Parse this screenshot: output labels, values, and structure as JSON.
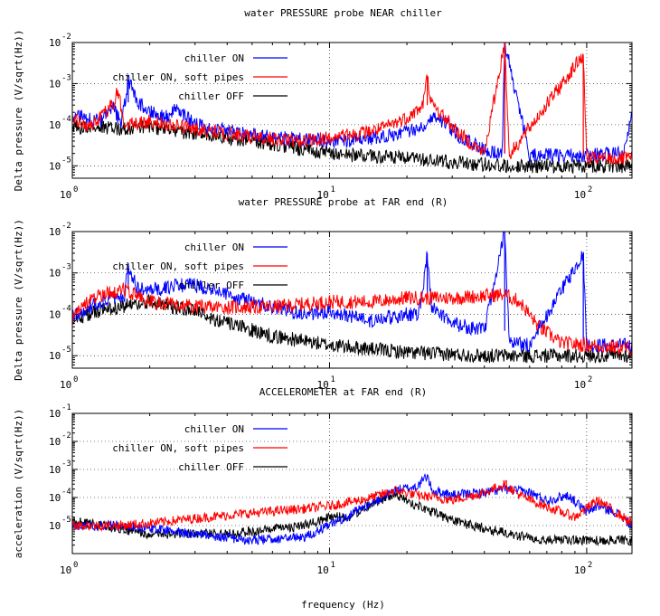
{
  "chart_data": [
    {
      "type": "line",
      "title": "water PRESSURE probe NEAR chiller",
      "xlabel": "",
      "ylabel": "Delta pressure (V/sqrt(Hz))",
      "xscale": "log",
      "yscale": "log",
      "xlim": [
        1,
        150
      ],
      "ylim": [
        5e-06,
        0.01
      ],
      "x_tick_labels": [
        {
          "base": "10",
          "exp": "0"
        },
        {
          "base": "10",
          "exp": "1"
        },
        {
          "base": "10",
          "exp": "2"
        }
      ],
      "y_tick_labels": [
        {
          "base": "10",
          "exp": "-5"
        },
        {
          "base": "10",
          "exp": "-4"
        },
        {
          "base": "10",
          "exp": "-3"
        },
        {
          "base": "10",
          "exp": "-2"
        }
      ],
      "grid": true,
      "legend_position": "top-left",
      "series": [
        {
          "name": "chiller ON",
          "color": "#0000ff",
          "points": [
            [
              1,
              0.00017
            ],
            [
              1.3,
              0.00012
            ],
            [
              1.45,
              0.00025
            ],
            [
              1.55,
              0.0001
            ],
            [
              1.65,
              0.0012
            ],
            [
              1.8,
              0.00035
            ],
            [
              2.0,
              0.00022
            ],
            [
              2.4,
              0.00014
            ],
            [
              2.5,
              0.00028
            ],
            [
              3,
              0.0001
            ],
            [
              4,
              7e-05
            ],
            [
              6,
              5e-05
            ],
            [
              10,
              4e-05
            ],
            [
              14,
              4.5e-05
            ],
            [
              18,
              6e-05
            ],
            [
              22,
              8e-05
            ],
            [
              24,
              0.00012
            ],
            [
              25,
              0.00016
            ],
            [
              28,
              0.00012
            ],
            [
              32,
              5e-05
            ],
            [
              40,
              2.5e-05
            ],
            [
              47,
              2e-05
            ],
            [
              48,
              0.01
            ],
            [
              60,
              1.8e-05
            ],
            [
              100,
              1.8e-05
            ],
            [
              140,
              2e-05
            ],
            [
              148,
              0.00015
            ]
          ]
        },
        {
          "name": "chiller ON, soft pipes",
          "color": "#ff0000",
          "points": [
            [
              1,
              0.00013
            ],
            [
              1.2,
              9e-05
            ],
            [
              1.45,
              0.00035
            ],
            [
              1.5,
              0.0007
            ],
            [
              1.6,
              0.0001
            ],
            [
              2,
              0.00012
            ],
            [
              3,
              8e-05
            ],
            [
              5,
              5e-05
            ],
            [
              8,
              4e-05
            ],
            [
              12,
              5.5e-05
            ],
            [
              16,
              8e-05
            ],
            [
              20,
              0.00015
            ],
            [
              23,
              0.00028
            ],
            [
              24,
              0.0015
            ],
            [
              25,
              0.0003
            ],
            [
              28,
              0.00015
            ],
            [
              32,
              6e-05
            ],
            [
              40,
              2e-05
            ],
            [
              48,
              0.01
            ],
            [
              50,
              1.8e-05
            ],
            [
              97,
              0.005
            ],
            [
              100,
              1.5e-05
            ],
            [
              150,
              1.5e-05
            ]
          ]
        },
        {
          "name": "chiller OFF",
          "color": "#000000",
          "points": [
            [
              1,
              9e-05
            ],
            [
              1.5,
              8e-05
            ],
            [
              2,
              9e-05
            ],
            [
              3,
              6e-05
            ],
            [
              5,
              4e-05
            ],
            [
              8,
              2.5e-05
            ],
            [
              10,
              2e-05
            ],
            [
              20,
              1.5e-05
            ],
            [
              30,
              1.2e-05
            ],
            [
              50,
              1e-05
            ],
            [
              80,
              1e-05
            ],
            [
              150,
              1e-05
            ]
          ]
        }
      ]
    },
    {
      "type": "line",
      "title": "water PRESSURE probe at FAR end (R)",
      "xlabel": "",
      "ylabel": "Delta pressure (V/sqrt(Hz))",
      "xscale": "log",
      "yscale": "log",
      "xlim": [
        1,
        150
      ],
      "ylim": [
        5e-06,
        0.01
      ],
      "x_tick_labels": [
        {
          "base": "10",
          "exp": "0"
        },
        {
          "base": "10",
          "exp": "1"
        },
        {
          "base": "10",
          "exp": "2"
        }
      ],
      "y_tick_labels": [
        {
          "base": "10",
          "exp": "-5"
        },
        {
          "base": "10",
          "exp": "-4"
        },
        {
          "base": "10",
          "exp": "-3"
        },
        {
          "base": "10",
          "exp": "-2"
        }
      ],
      "grid": true,
      "legend_position": "top-left",
      "series": [
        {
          "name": "chiller ON",
          "color": "#0000ff",
          "points": [
            [
              1,
              9e-05
            ],
            [
              1.3,
              0.0002
            ],
            [
              1.6,
              0.0003
            ],
            [
              1.65,
              0.0015
            ],
            [
              1.8,
              0.0004
            ],
            [
              2.2,
              0.0004
            ],
            [
              2.5,
              0.0005
            ],
            [
              3,
              0.0005
            ],
            [
              4,
              0.0003
            ],
            [
              6,
              0.00015
            ],
            [
              8,
              0.0001
            ],
            [
              10,
              0.00012
            ],
            [
              14,
              7e-05
            ],
            [
              20,
              0.0001
            ],
            [
              22,
              0.0001
            ],
            [
              23,
              0.0003
            ],
            [
              24,
              0.003
            ],
            [
              25,
              0.00015
            ],
            [
              30,
              6e-05
            ],
            [
              40,
              4e-05
            ],
            [
              48,
              0.01
            ],
            [
              50,
              2e-05
            ],
            [
              60,
              1.8e-05
            ],
            [
              97,
              0.003
            ],
            [
              100,
              1.8e-05
            ],
            [
              150,
              1.8e-05
            ]
          ]
        },
        {
          "name": "chiller ON, soft pipes",
          "color": "#ff0000",
          "points": [
            [
              1,
              9e-05
            ],
            [
              1.2,
              0.00025
            ],
            [
              1.6,
              0.0004
            ],
            [
              2,
              0.0002
            ],
            [
              3,
              0.00015
            ],
            [
              6,
              0.00015
            ],
            [
              10,
              0.0002
            ],
            [
              15,
              0.0002
            ],
            [
              20,
              0.00025
            ],
            [
              30,
              0.00025
            ],
            [
              40,
              0.00028
            ],
            [
              48,
              0.0003
            ],
            [
              55,
              0.0002
            ],
            [
              65,
              5e-05
            ],
            [
              80,
              2e-05
            ],
            [
              150,
              1.5e-05
            ]
          ]
        },
        {
          "name": "chiller OFF",
          "color": "#000000",
          "points": [
            [
              1,
              8e-05
            ],
            [
              1.5,
              0.00015
            ],
            [
              2,
              0.0002
            ],
            [
              3,
              0.00012
            ],
            [
              4,
              6e-05
            ],
            [
              6,
              3e-05
            ],
            [
              10,
              1.8e-05
            ],
            [
              20,
              1.2e-05
            ],
            [
              40,
              1e-05
            ],
            [
              80,
              1e-05
            ],
            [
              150,
              1e-05
            ]
          ]
        }
      ]
    },
    {
      "type": "line",
      "title": "ACCELEROMETER at FAR end (R)",
      "xlabel": "frequency (Hz)",
      "ylabel": "acceleration (V/sqrt(Hz))",
      "xscale": "log",
      "yscale": "log",
      "xlim": [
        1,
        150
      ],
      "ylim": [
        1e-06,
        0.1
      ],
      "x_tick_labels": [
        {
          "base": "10",
          "exp": "0"
        },
        {
          "base": "10",
          "exp": "1"
        },
        {
          "base": "10",
          "exp": "2"
        }
      ],
      "y_tick_labels": [
        {
          "base": "10",
          "exp": "-5"
        },
        {
          "base": "10",
          "exp": "-4"
        },
        {
          "base": "10",
          "exp": "-3"
        },
        {
          "base": "10",
          "exp": "-2"
        },
        {
          "base": "10",
          "exp": "-1"
        }
      ],
      "grid": true,
      "legend_position": "top-left",
      "series": [
        {
          "name": "chiller ON",
          "color": "#0000ff",
          "points": [
            [
              1,
              1e-05
            ],
            [
              1.5,
              1e-05
            ],
            [
              2,
              8e-06
            ],
            [
              3,
              5e-06
            ],
            [
              5,
              3e-06
            ],
            [
              8,
              4e-06
            ],
            [
              10,
              1e-05
            ],
            [
              14,
              5e-05
            ],
            [
              18,
              0.00018
            ],
            [
              22,
              0.00025
            ],
            [
              24,
              0.0006
            ],
            [
              25,
              0.00018
            ],
            [
              30,
              0.00012
            ],
            [
              40,
              0.00015
            ],
            [
              48,
              0.0002
            ],
            [
              60,
              0.00015
            ],
            [
              70,
              8e-05
            ],
            [
              85,
              0.00012
            ],
            [
              100,
              3e-05
            ],
            [
              110,
              5e-05
            ],
            [
              130,
              3e-05
            ],
            [
              150,
              1e-05
            ]
          ]
        },
        {
          "name": "chiller ON, soft pipes",
          "color": "#ff0000",
          "points": [
            [
              1,
              1e-05
            ],
            [
              1.5,
              1e-05
            ],
            [
              2,
              1.2e-05
            ],
            [
              3,
              1.8e-05
            ],
            [
              5,
              2.8e-05
            ],
            [
              8,
              4e-05
            ],
            [
              10,
              5e-05
            ],
            [
              14,
              9e-05
            ],
            [
              18,
              0.00018
            ],
            [
              22,
              0.00012
            ],
            [
              26,
              0.0001
            ],
            [
              30,
              8e-05
            ],
            [
              40,
              0.00015
            ],
            [
              48,
              0.0003
            ],
            [
              55,
              0.00012
            ],
            [
              65,
              6e-05
            ],
            [
              80,
              3e-05
            ],
            [
              90,
              2e-05
            ],
            [
              110,
              8e-05
            ],
            [
              130,
              3e-05
            ],
            [
              150,
              1.2e-05
            ]
          ]
        },
        {
          "name": "chiller OFF",
          "color": "#000000",
          "points": [
            [
              1,
              1.5e-05
            ],
            [
              1.5,
              8e-06
            ],
            [
              2,
              5e-06
            ],
            [
              3,
              5e-06
            ],
            [
              5,
              6e-06
            ],
            [
              8,
              1e-05
            ],
            [
              10,
              2e-05
            ],
            [
              12,
              2e-05
            ],
            [
              15,
              7e-05
            ],
            [
              18,
              0.00012
            ],
            [
              22,
              5e-05
            ],
            [
              30,
              1.5e-05
            ],
            [
              40,
              8e-06
            ],
            [
              50,
              5e-06
            ],
            [
              70,
              3e-06
            ],
            [
              100,
              3e-06
            ],
            [
              150,
              3e-06
            ]
          ]
        }
      ]
    }
  ]
}
